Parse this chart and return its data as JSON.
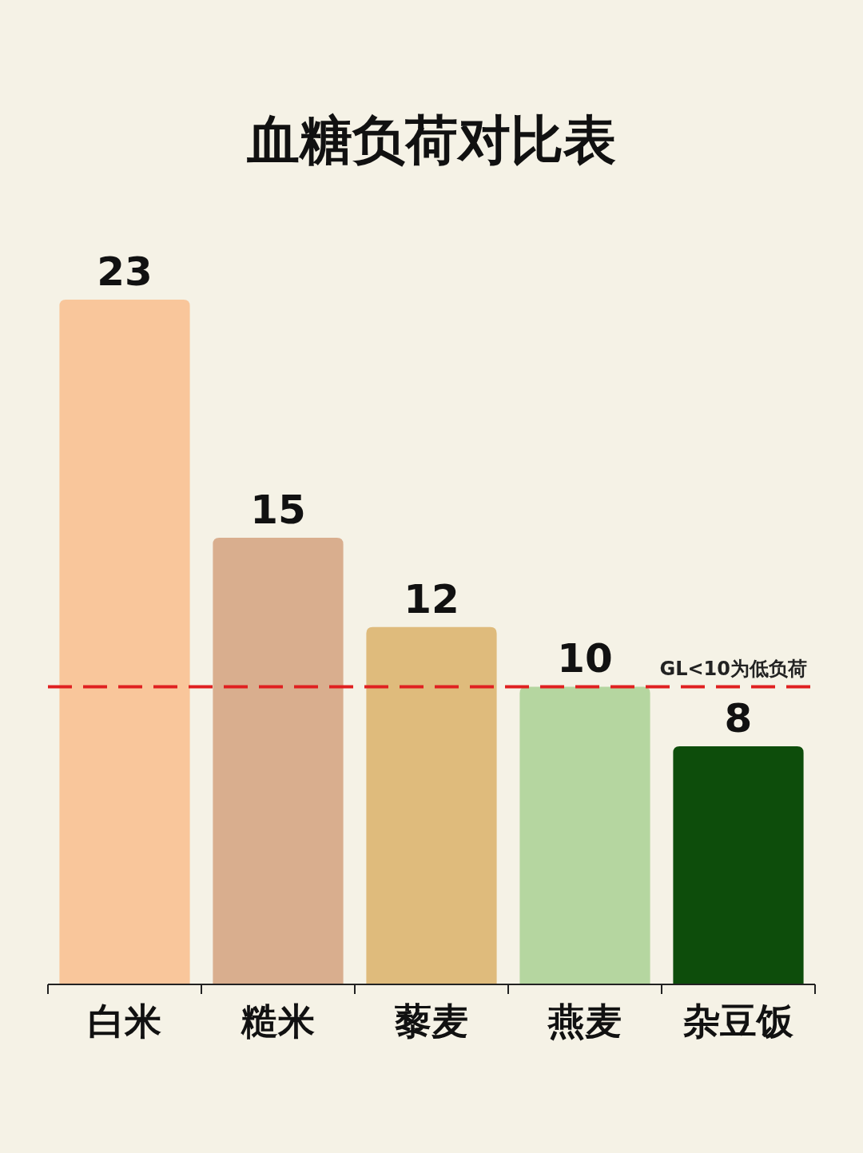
{
  "chart_data": {
    "type": "bar",
    "title": "血糖负荷对比表",
    "categories": [
      "白米",
      "糙米",
      "藜麦",
      "燕麦",
      "杂豆饭"
    ],
    "values": [
      23,
      15,
      12,
      10,
      8
    ],
    "colors": [
      "#f9c69b",
      "#d9ae8e",
      "#dfbb7c",
      "#b5d6a0",
      "#0d4d0b"
    ],
    "data_labels": true,
    "ref_lines": [
      {
        "axis": "y",
        "value": 10,
        "label": "GL<10为低负荷",
        "color": "#e02020",
        "line_style": "dashed"
      }
    ]
  }
}
